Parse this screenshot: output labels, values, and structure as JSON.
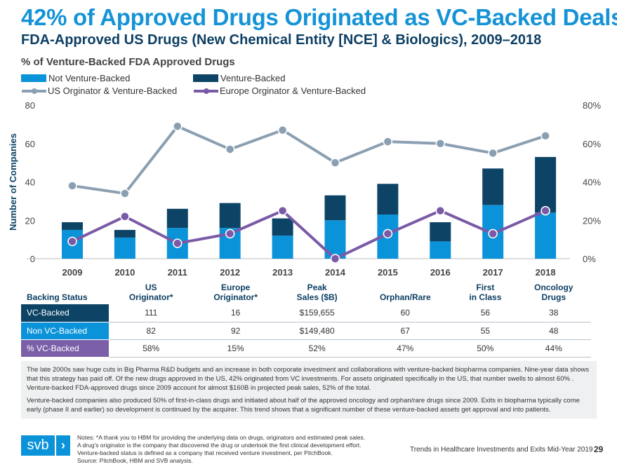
{
  "title": "42% of Approved Drugs Originated as VC-Backed Deals",
  "subtitle": "FDA-Approved US Drugs (New Chemical Entity [NCE] & Biologics), 2009–2018",
  "colors": {
    "not_vc": "#0b93d9",
    "vc": "#0d4466",
    "us_line": "#8aa0b2",
    "europe_line": "#7a5aa6",
    "title": "#1593d6",
    "pct_row": "#7b5fa8"
  },
  "chart_data": {
    "type": "bar+line",
    "title": "% of Venture-Backed FDA Approved Drugs",
    "ylabel": "Number of Companies",
    "ylim": [
      0,
      80
    ],
    "y2lim": [
      0,
      80
    ],
    "yticks": [
      "0",
      "20",
      "40",
      "60",
      "80"
    ],
    "y2ticks": [
      "0%",
      "20%",
      "40%",
      "60%",
      "80%"
    ],
    "categories": [
      "2009",
      "2010",
      "2011",
      "2012",
      "2013",
      "2014",
      "2015",
      "2016",
      "2017",
      "2018"
    ],
    "legend": [
      "Not Venture-Backed",
      "Venture-Backed",
      "US Orginator & Venture-Backed",
      "Europe Orginator & Venture-Backed"
    ],
    "legend_position": "top-left",
    "bars": [
      {
        "name": "Not Venture-Backed",
        "values": [
          15,
          11,
          16,
          16,
          12,
          20,
          23,
          9,
          28,
          24
        ]
      },
      {
        "name": "Venture-Backed",
        "values": [
          4,
          4,
          10,
          13,
          9,
          13,
          16,
          10,
          19,
          29
        ]
      }
    ],
    "lines": [
      {
        "name": "US Orginator & Venture-Backed",
        "values": [
          38,
          34,
          69,
          57,
          67,
          50,
          61,
          60,
          55,
          64
        ]
      },
      {
        "name": "Europe Orginator & Venture-Backed",
        "values": [
          9,
          22,
          8,
          13,
          25,
          0,
          13,
          25,
          13,
          25
        ]
      }
    ]
  },
  "table": {
    "headers": [
      "Backing Status",
      "US\nOriginator*",
      "Europe\nOriginator*",
      "Peak\nSales ($B)",
      "Orphan/Rare",
      "First\nin Class",
      "Oncology\nDrugs"
    ],
    "rows": [
      {
        "label": "VC-Backed",
        "cells": [
          "111",
          "16",
          "$159,655",
          "60",
          "56",
          "38"
        ]
      },
      {
        "label": "Non VC-Backed",
        "cells": [
          "82",
          "92",
          "$149,480",
          "67",
          "55",
          "48"
        ]
      },
      {
        "label": "% VC-Backed",
        "cells": [
          "58%",
          "15%",
          "52%",
          "47%",
          "50%",
          "44%"
        ]
      }
    ]
  },
  "text": {
    "p1": "The late 2000s saw huge cuts in Big Pharma R&D budgets and an increase in both corporate investment and collaborations with venture-backed biopharma companies. Nine-year data shows that this strategy has paid off. Of the new drugs approved in the US, 42% originated from VC investments. For assets originated specifically in the US, that number swells to almost 60% . Venture-backed FDA-approved drugs since 2009 account for almost $160B in projected peak sales, 52% of the total.",
    "p2": "Venture-backed companies also produced 50% of first-in-class drugs and initiated about half of the approved oncology and orphan/rare drugs since 2009. Exits in biopharma typically come early (phase II and earlier) so development is continued by the acquirer. This trend shows that a significant number of these venture-backed assets get approval and into patients."
  },
  "footer": {
    "logo": "svb",
    "notes": [
      "Notes: *A thank you to HBM for providing the underlying data on drugs, originators and estimated peak sales.",
      "A drug's originator is the company that discovered the drug or undertook the first clinical development effort.",
      "Venture-backed status is defined as a company that received venture investment, per PitchBook.",
      "Source: PitchBook, HBM and SVB analysis."
    ],
    "publication": "Trends in Healthcare Investments and Exits Mid-Year 2019",
    "page": "29"
  }
}
